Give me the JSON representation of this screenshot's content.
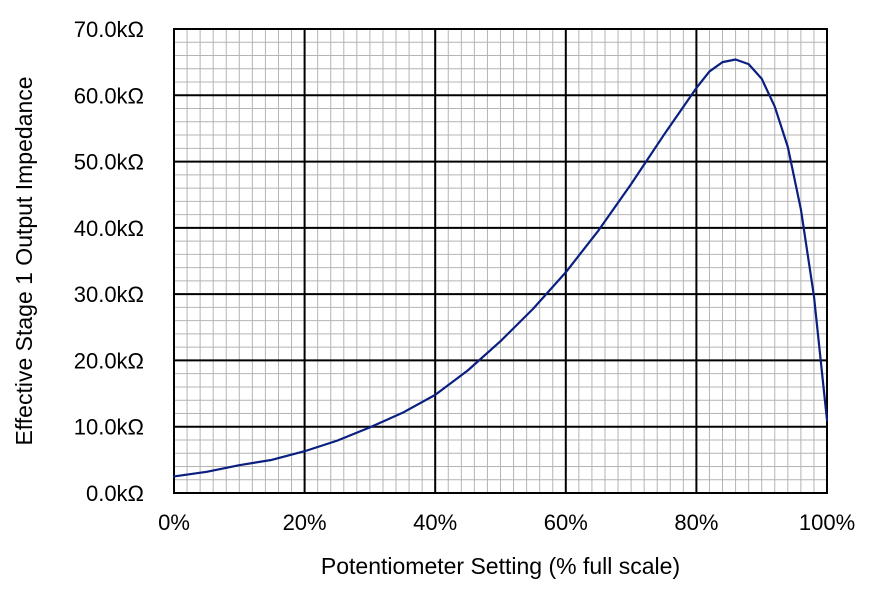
{
  "chart_data": {
    "type": "line",
    "title": "",
    "xlabel": "Potentiometer Setting (% full scale)",
    "ylabel": "Effective Stage 1 Output Impedance",
    "xlim": [
      0,
      100
    ],
    "ylim": [
      0,
      70
    ],
    "x_unit": "%",
    "y_unit": "kΩ",
    "x_ticks": [
      0,
      20,
      40,
      60,
      80,
      100
    ],
    "y_ticks": [
      0,
      10,
      20,
      30,
      40,
      50,
      60,
      70
    ],
    "x_tick_labels": [
      "0%",
      "20%",
      "40%",
      "60%",
      "80%",
      "100%"
    ],
    "y_tick_labels": [
      "0.0kΩ",
      "10.0kΩ",
      "20.0kΩ",
      "30.0kΩ",
      "40.0kΩ",
      "50.0kΩ",
      "60.0kΩ",
      "70.0kΩ"
    ],
    "grid": {
      "major": true,
      "minor": true,
      "minor_x_step": 2,
      "minor_y_step": 2
    },
    "line_color": "#0a1f80",
    "series": [
      {
        "x": [
          0,
          5,
          10,
          15,
          20,
          25,
          30,
          35,
          40,
          45,
          50,
          55,
          60,
          65,
          70,
          75,
          80,
          82,
          84,
          86,
          88,
          90,
          92,
          94,
          96,
          98,
          100
        ],
        "y": [
          2.5,
          3.2,
          4.2,
          5.0,
          6.3,
          7.9,
          9.9,
          12.1,
          14.8,
          18.5,
          22.9,
          27.8,
          33.3,
          39.6,
          46.6,
          54.0,
          61.1,
          63.6,
          65.0,
          65.4,
          64.7,
          62.5,
          58.3,
          52.2,
          42.8,
          29.7,
          11.0
        ]
      }
    ]
  }
}
